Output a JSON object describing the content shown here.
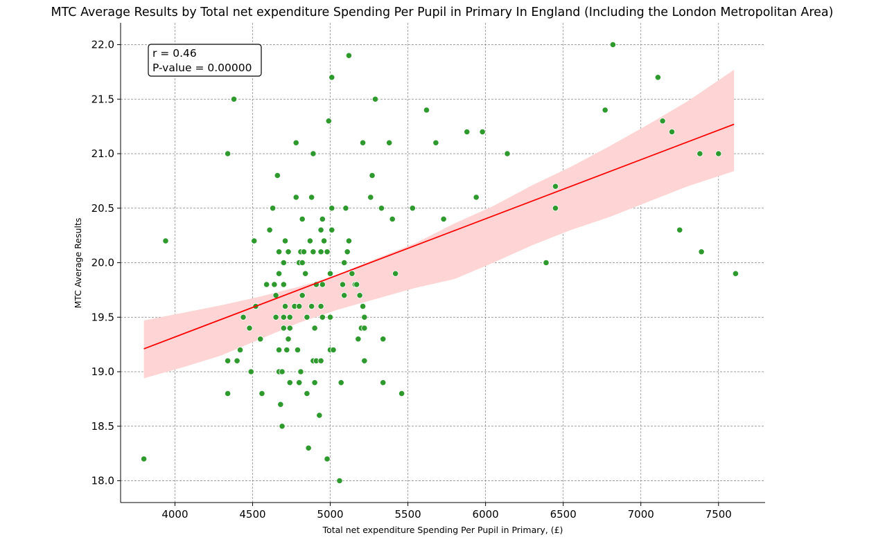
{
  "chart_data": {
    "type": "scatter",
    "title": "MTC Average Results by Total net expenditure Spending Per Pupil in Primary In England (Including the London Metropolitan Area)",
    "xlabel": "Total net expenditure Spending Per Pupil in Primary, (£)",
    "ylabel": "MTC Average Results",
    "xlim": [
      3650,
      7800
    ],
    "ylim": [
      17.8,
      22.2
    ],
    "x_ticks": [
      4000,
      4500,
      5000,
      5500,
      6000,
      6500,
      7000,
      7500
    ],
    "y_ticks": [
      18.0,
      18.5,
      19.0,
      19.5,
      20.0,
      20.5,
      21.0,
      21.5,
      22.0
    ],
    "x_tick_labels": [
      "4000",
      "4500",
      "5000",
      "5500",
      "6000",
      "6500",
      "7000",
      "7500"
    ],
    "y_tick_labels": [
      "18.0",
      "18.5",
      "19.0",
      "19.5",
      "20.0",
      "20.5",
      "21.0",
      "21.5",
      "22.0"
    ],
    "grid": true,
    "grid_style": "dashed",
    "annotation": {
      "r_text": "r = 0.46",
      "p_text": "P-value = 0.00000",
      "placement": "top-left"
    },
    "regression": {
      "x_range": [
        3800,
        7600
      ],
      "y_start": 19.21,
      "y_end": 21.27,
      "ci_lower": [
        18.94,
        19.04,
        19.15,
        19.3,
        19.45,
        19.57,
        19.67,
        19.77,
        19.85,
        20.0,
        20.16,
        20.3,
        20.42,
        20.56,
        20.7,
        20.84
      ],
      "ci_upper": [
        19.47,
        19.54,
        19.61,
        19.69,
        19.78,
        19.89,
        20.04,
        20.18,
        20.36,
        20.52,
        20.71,
        20.88,
        21.07,
        21.27,
        21.48,
        21.77
      ],
      "ci_x": [
        3800,
        4050,
        4300,
        4550,
        4800,
        5050,
        5300,
        5550,
        5800,
        6050,
        6300,
        6550,
        6800,
        7050,
        7300,
        7600
      ],
      "line_color": "#ff0000",
      "band_color": "#ffd4d4"
    },
    "point_color": "#2e9a2e",
    "points": [
      [
        3800,
        18.2
      ],
      [
        3940,
        20.2
      ],
      [
        4340,
        21.0
      ],
      [
        4380,
        21.5
      ],
      [
        4340,
        19.1
      ],
      [
        4340,
        18.8
      ],
      [
        4400,
        19.1
      ],
      [
        4420,
        19.2
      ],
      [
        4440,
        19.5
      ],
      [
        4480,
        19.4
      ],
      [
        4490,
        19.0
      ],
      [
        4510,
        20.2
      ],
      [
        4520,
        19.6
      ],
      [
        4550,
        19.3
      ],
      [
        4560,
        18.8
      ],
      [
        4590,
        19.8
      ],
      [
        4610,
        20.3
      ],
      [
        4630,
        20.5
      ],
      [
        4640,
        19.8
      ],
      [
        4650,
        19.7
      ],
      [
        4650,
        19.5
      ],
      [
        4660,
        20.8
      ],
      [
        4670,
        20.1
      ],
      [
        4670,
        19.9
      ],
      [
        4670,
        19.2
      ],
      [
        4670,
        19.0
      ],
      [
        4680,
        18.7
      ],
      [
        4690,
        19.0
      ],
      [
        4690,
        18.5
      ],
      [
        4700,
        20.0
      ],
      [
        4700,
        19.8
      ],
      [
        4700,
        19.5
      ],
      [
        4700,
        19.4
      ],
      [
        4710,
        20.2
      ],
      [
        4710,
        19.6
      ],
      [
        4720,
        19.2
      ],
      [
        4730,
        20.1
      ],
      [
        4730,
        19.3
      ],
      [
        4740,
        19.5
      ],
      [
        4740,
        19.4
      ],
      [
        4740,
        18.9
      ],
      [
        4770,
        19.6
      ],
      [
        4780,
        21.1
      ],
      [
        4780,
        20.6
      ],
      [
        4790,
        19.2
      ],
      [
        4800,
        20.0
      ],
      [
        4800,
        19.6
      ],
      [
        4800,
        18.9
      ],
      [
        4810,
        20.1
      ],
      [
        4810,
        19.0
      ],
      [
        4820,
        20.0
      ],
      [
        4820,
        19.7
      ],
      [
        4820,
        20.4
      ],
      [
        4830,
        20.1
      ],
      [
        4840,
        19.9
      ],
      [
        4850,
        19.5
      ],
      [
        4850,
        18.8
      ],
      [
        4860,
        18.3
      ],
      [
        4870,
        20.2
      ],
      [
        4880,
        20.6
      ],
      [
        4880,
        19.6
      ],
      [
        4890,
        21.0
      ],
      [
        4890,
        20.1
      ],
      [
        4890,
        19.1
      ],
      [
        4900,
        19.4
      ],
      [
        4900,
        18.9
      ],
      [
        4910,
        19.8
      ],
      [
        4910,
        19.1
      ],
      [
        4930,
        18.6
      ],
      [
        4940,
        20.3
      ],
      [
        4940,
        20.1
      ],
      [
        4940,
        19.6
      ],
      [
        4940,
        19.1
      ],
      [
        4950,
        20.4
      ],
      [
        4950,
        19.8
      ],
      [
        4950,
        19.5
      ],
      [
        4960,
        20.2
      ],
      [
        4980,
        20.1
      ],
      [
        4980,
        18.2
      ],
      [
        4990,
        21.3
      ],
      [
        5000,
        19.9
      ],
      [
        5000,
        19.2
      ],
      [
        5000,
        19.5
      ],
      [
        5010,
        21.7
      ],
      [
        5010,
        20.5
      ],
      [
        5010,
        20.3
      ],
      [
        5020,
        19.2
      ],
      [
        5060,
        18.0
      ],
      [
        5070,
        18.9
      ],
      [
        5080,
        19.8
      ],
      [
        5090,
        20.0
      ],
      [
        5090,
        19.7
      ],
      [
        5100,
        20.5
      ],
      [
        5110,
        20.1
      ],
      [
        5120,
        21.9
      ],
      [
        5120,
        20.2
      ],
      [
        5140,
        19.9
      ],
      [
        5160,
        19.8
      ],
      [
        5170,
        19.8
      ],
      [
        5180,
        19.3
      ],
      [
        5190,
        19.7
      ],
      [
        5200,
        19.4
      ],
      [
        5210,
        21.1
      ],
      [
        5210,
        19.6
      ],
      [
        5220,
        19.5
      ],
      [
        5220,
        19.4
      ],
      [
        5220,
        19.1
      ],
      [
        5260,
        20.6
      ],
      [
        5270,
        20.8
      ],
      [
        5290,
        21.5
      ],
      [
        5330,
        20.5
      ],
      [
        5340,
        19.3
      ],
      [
        5340,
        18.9
      ],
      [
        5380,
        21.1
      ],
      [
        5400,
        20.4
      ],
      [
        5420,
        19.9
      ],
      [
        5460,
        18.8
      ],
      [
        5530,
        20.5
      ],
      [
        5620,
        21.4
      ],
      [
        5680,
        21.1
      ],
      [
        5730,
        20.4
      ],
      [
        5880,
        21.2
      ],
      [
        5940,
        20.6
      ],
      [
        5980,
        21.2
      ],
      [
        6140,
        21.0
      ],
      [
        6390,
        20.0
      ],
      [
        6450,
        20.7
      ],
      [
        6450,
        20.5
      ],
      [
        6770,
        21.4
      ],
      [
        6820,
        22.0
      ],
      [
        7110,
        21.7
      ],
      [
        7140,
        21.3
      ],
      [
        7200,
        21.2
      ],
      [
        7250,
        20.3
      ],
      [
        7380,
        21.0
      ],
      [
        7390,
        20.1
      ],
      [
        7500,
        21.0
      ],
      [
        7610,
        19.9
      ]
    ]
  }
}
